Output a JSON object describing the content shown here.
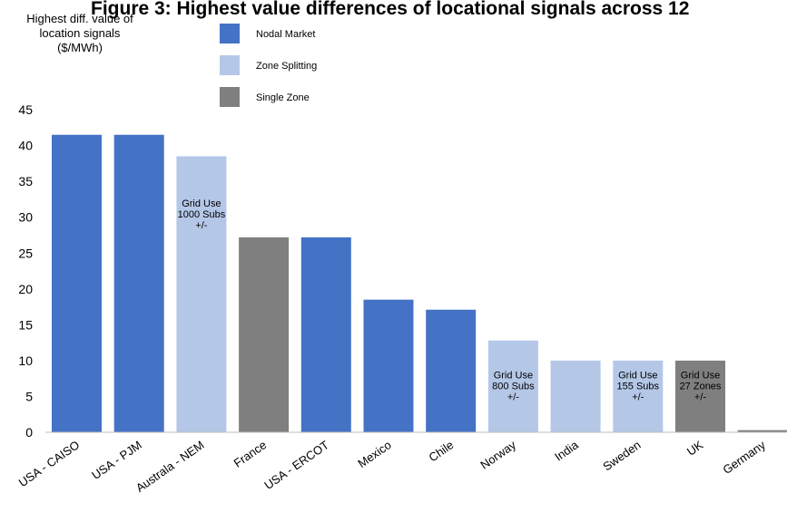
{
  "chart_data": {
    "type": "bar",
    "title": "Figure 3: Highest value differences of locational signals across 12",
    "ylabel": [
      "Highest diff. value of",
      "location signals",
      "($/MWh)"
    ],
    "ylim": [
      0,
      45
    ],
    "yticks": [
      0,
      5,
      10,
      15,
      20,
      25,
      30,
      35,
      40,
      45
    ],
    "grid": false,
    "legend_position": "top-center",
    "categories": [
      "USA - CAISO",
      "USA - PJM",
      "Australa - NEM",
      "France",
      "USA - ERCOT",
      "Mexico",
      "Chile",
      "Norway",
      "India",
      "Sweden",
      "UK",
      "Germany"
    ],
    "values": [
      41.5,
      41.5,
      38.5,
      27.2,
      27.2,
      18.5,
      17.1,
      12.8,
      10.0,
      10.0,
      10.0,
      0.3
    ],
    "market_type": [
      "Nodal Market",
      "Nodal Market",
      "Zone Splitting",
      "Single Zone",
      "Nodal Market",
      "Nodal Market",
      "Nodal Market",
      "Zone Splitting",
      "Zone Splitting",
      "Zone Splitting",
      "Single Zone",
      "Single Zone"
    ],
    "legend": [
      {
        "name": "Nodal Market",
        "color": "#4472c4"
      },
      {
        "name": "Zone Splitting",
        "color": "#b4c7e7"
      },
      {
        "name": "Single Zone",
        "color": "#7f7f7f"
      }
    ],
    "annotations": [
      {
        "category": "Australa - NEM",
        "lines": [
          "Grid Use",
          "1000 Subs",
          "+/-"
        ],
        "y": 31.5
      },
      {
        "category": "Norway",
        "lines": [
          "Grid Use",
          "800 Subs",
          "+/-"
        ],
        "y": 7.5
      },
      {
        "category": "Sweden",
        "lines": [
          "Grid Use",
          "155 Subs",
          "+/-"
        ],
        "y": 7.5
      },
      {
        "category": "UK",
        "lines": [
          "Grid Use",
          "27 Zones",
          "+/-"
        ],
        "y": 7.5
      }
    ]
  }
}
